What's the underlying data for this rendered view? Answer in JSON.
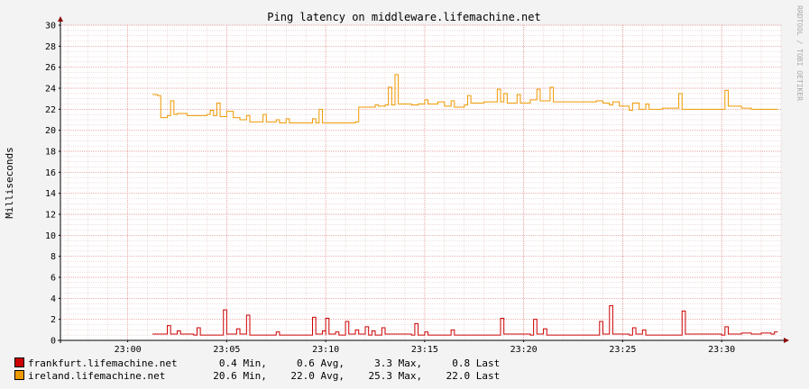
{
  "colors": {
    "background": "#f3f3f3",
    "canvas": "#ffffff",
    "grid_minor": "#e6c8c8",
    "grid_major": "#e08080",
    "frankfurt": "#cc0000",
    "ireland": "#ee9900"
  },
  "watermark": "RRDTOOL / TOBI OETIKER",
  "chart_data": {
    "type": "line",
    "title": "Ping latency on middleware.lifemachine.net",
    "xlabel": "",
    "ylabel": "Milliseconds",
    "ylim": [
      0,
      30
    ],
    "xlim": [
      "22:56:36",
      "23:33:00"
    ],
    "grid": true,
    "legend": "bottom-left",
    "y_ticks": [
      "0",
      "2",
      "4",
      "6",
      "8",
      "10",
      "12",
      "14",
      "16",
      "18",
      "20",
      "22",
      "24",
      "26",
      "28",
      "30"
    ],
    "x_ticks": [
      "23:00",
      "23:05",
      "23:10",
      "23:15",
      "23:20",
      "23:25",
      "23:30"
    ],
    "series": [
      {
        "name": "frankfurt.lifemachine.net",
        "color": "#cc0000",
        "stats": {
          "min": "0.4",
          "avg": "0.6",
          "max": "3.3",
          "last": "0.8"
        },
        "points": [
          [
            "23:01:15",
            0.6
          ],
          [
            "23:01:50",
            0.6
          ],
          [
            "23:02:00",
            1.4
          ],
          [
            "23:02:10",
            0.6
          ],
          [
            "23:02:30",
            0.9
          ],
          [
            "23:02:40",
            0.6
          ],
          [
            "23:03:20",
            0.5
          ],
          [
            "23:03:30",
            1.2
          ],
          [
            "23:03:40",
            0.5
          ],
          [
            "23:04:40",
            0.5
          ],
          [
            "23:04:50",
            2.9
          ],
          [
            "23:05:00",
            0.6
          ],
          [
            "23:05:30",
            1.1
          ],
          [
            "23:05:40",
            0.6
          ],
          [
            "23:06:00",
            2.4
          ],
          [
            "23:06:10",
            0.5
          ],
          [
            "23:07:20",
            0.5
          ],
          [
            "23:07:30",
            0.8
          ],
          [
            "23:07:40",
            0.5
          ],
          [
            "23:09:10",
            0.5
          ],
          [
            "23:09:20",
            2.2
          ],
          [
            "23:09:30",
            0.6
          ],
          [
            "23:09:50",
            0.9
          ],
          [
            "23:10:00",
            0.5
          ],
          [
            "23:10:00",
            2.1
          ],
          [
            "23:10:10",
            0.6
          ],
          [
            "23:10:30",
            0.8
          ],
          [
            "23:10:40",
            0.5
          ],
          [
            "23:11:00",
            1.8
          ],
          [
            "23:11:10",
            0.6
          ],
          [
            "23:11:30",
            1.0
          ],
          [
            "23:11:40",
            0.6
          ],
          [
            "23:12:00",
            1.3
          ],
          [
            "23:12:10",
            0.5
          ],
          [
            "23:12:20",
            0.9
          ],
          [
            "23:12:30",
            0.5
          ],
          [
            "23:12:50",
            1.2
          ],
          [
            "23:13:00",
            0.6
          ],
          [
            "23:14:20",
            0.5
          ],
          [
            "23:14:30",
            1.6
          ],
          [
            "23:14:40",
            0.5
          ],
          [
            "23:15:00",
            0.8
          ],
          [
            "23:15:10",
            0.5
          ],
          [
            "23:16:10",
            0.5
          ],
          [
            "23:16:20",
            1.0
          ],
          [
            "23:16:30",
            0.5
          ],
          [
            "23:18:40",
            0.5
          ],
          [
            "23:18:50",
            2.1
          ],
          [
            "23:19:00",
            0.6
          ],
          [
            "23:20:20",
            0.5
          ],
          [
            "23:20:30",
            2.0
          ],
          [
            "23:20:40",
            0.6
          ],
          [
            "23:21:00",
            1.1
          ],
          [
            "23:21:10",
            0.5
          ],
          [
            "23:23:40",
            0.5
          ],
          [
            "23:23:50",
            1.8
          ],
          [
            "23:24:00",
            0.6
          ],
          [
            "23:24:20",
            3.3
          ],
          [
            "23:24:30",
            0.6
          ],
          [
            "23:25:20",
            0.5
          ],
          [
            "23:25:30",
            1.2
          ],
          [
            "23:25:40",
            0.6
          ],
          [
            "23:26:00",
            1.0
          ],
          [
            "23:26:10",
            0.5
          ],
          [
            "23:27:50",
            0.5
          ],
          [
            "23:28:00",
            2.8
          ],
          [
            "23:28:10",
            0.6
          ],
          [
            "23:30:00",
            0.5
          ],
          [
            "23:30:10",
            1.3
          ],
          [
            "23:30:20",
            0.6
          ],
          [
            "23:31:00",
            0.7
          ],
          [
            "23:31:30",
            0.6
          ],
          [
            "23:32:00",
            0.7
          ],
          [
            "23:32:30",
            0.6
          ],
          [
            "23:32:40",
            0.8
          ],
          [
            "23:32:50",
            0.8
          ]
        ]
      },
      {
        "name": "ireland.lifemachine.net",
        "color": "#ee9900",
        "stats": {
          "min": "20.6",
          "avg": "22.0",
          "max": "25.3",
          "last": "22.0"
        },
        "points": [
          [
            "23:01:15",
            23.4
          ],
          [
            "23:01:30",
            23.3
          ],
          [
            "23:01:40",
            21.2
          ],
          [
            "23:02:00",
            21.4
          ],
          [
            "23:02:10",
            22.8
          ],
          [
            "23:02:20",
            21.5
          ],
          [
            "23:02:30",
            21.6
          ],
          [
            "23:03:00",
            21.4
          ],
          [
            "23:04:00",
            21.5
          ],
          [
            "23:04:10",
            21.9
          ],
          [
            "23:04:20",
            21.4
          ],
          [
            "23:04:30",
            22.6
          ],
          [
            "23:04:40",
            21.3
          ],
          [
            "23:05:00",
            21.8
          ],
          [
            "23:05:20",
            21.2
          ],
          [
            "23:05:40",
            21.0
          ],
          [
            "23:06:00",
            21.4
          ],
          [
            "23:06:10",
            20.8
          ],
          [
            "23:06:50",
            21.5
          ],
          [
            "23:07:00",
            20.8
          ],
          [
            "23:07:30",
            21.0
          ],
          [
            "23:07:40",
            20.7
          ],
          [
            "23:08:00",
            21.1
          ],
          [
            "23:08:10",
            20.7
          ],
          [
            "23:09:20",
            21.1
          ],
          [
            "23:09:30",
            20.7
          ],
          [
            "23:09:40",
            22.0
          ],
          [
            "23:09:50",
            20.7
          ],
          [
            "23:11:30",
            20.8
          ],
          [
            "23:11:40",
            22.2
          ],
          [
            "23:12:30",
            22.4
          ],
          [
            "23:12:40",
            22.3
          ],
          [
            "23:13:00",
            22.4
          ],
          [
            "23:13:10",
            24.1
          ],
          [
            "23:13:20",
            22.4
          ],
          [
            "23:13:30",
            25.3
          ],
          [
            "23:13:40",
            22.5
          ],
          [
            "23:14:20",
            22.4
          ],
          [
            "23:14:40",
            22.5
          ],
          [
            "23:15:00",
            22.9
          ],
          [
            "23:15:10",
            22.5
          ],
          [
            "23:15:40",
            22.7
          ],
          [
            "23:16:00",
            22.3
          ],
          [
            "23:16:20",
            22.8
          ],
          [
            "23:16:30",
            22.2
          ],
          [
            "23:17:00",
            22.4
          ],
          [
            "23:17:10",
            23.3
          ],
          [
            "23:17:20",
            22.6
          ],
          [
            "23:18:00",
            22.7
          ],
          [
            "23:18:20",
            22.7
          ],
          [
            "23:18:40",
            23.9
          ],
          [
            "23:18:50",
            22.7
          ],
          [
            "23:19:00",
            23.5
          ],
          [
            "23:19:10",
            22.6
          ],
          [
            "23:19:40",
            23.4
          ],
          [
            "23:19:50",
            22.6
          ],
          [
            "23:20:20",
            22.9
          ],
          [
            "23:20:40",
            23.9
          ],
          [
            "23:20:50",
            22.8
          ],
          [
            "23:21:20",
            24.1
          ],
          [
            "23:21:30",
            22.7
          ],
          [
            "23:23:30",
            22.7
          ],
          [
            "23:23:40",
            22.8
          ],
          [
            "23:24:00",
            22.6
          ],
          [
            "23:24:20",
            22.4
          ],
          [
            "23:24:30",
            22.7
          ],
          [
            "23:24:50",
            22.3
          ],
          [
            "23:25:20",
            21.9
          ],
          [
            "23:25:30",
            22.6
          ],
          [
            "23:25:50",
            22.0
          ],
          [
            "23:26:10",
            22.5
          ],
          [
            "23:26:20",
            22.0
          ],
          [
            "23:27:00",
            22.1
          ],
          [
            "23:27:50",
            23.5
          ],
          [
            "23:28:00",
            22.0
          ],
          [
            "23:29:00",
            22.0
          ],
          [
            "23:29:30",
            22.0
          ],
          [
            "23:30:10",
            23.8
          ],
          [
            "23:30:20",
            22.3
          ],
          [
            "23:31:00",
            22.1
          ],
          [
            "23:31:30",
            22.0
          ],
          [
            "23:32:50",
            22.0
          ]
        ]
      }
    ]
  },
  "legend": [
    {
      "name": "frankfurt.lifemachine.net",
      "min": "0.4",
      "avg": "0.6",
      "max": "3.3",
      "last": "0.8",
      "color": "#cc0000"
    },
    {
      "name": "ireland.lifemachine.net",
      "min": "20.6",
      "avg": "22.0",
      "max": "25.3",
      "last": "22.0",
      "color": "#ee9900"
    }
  ],
  "labels": {
    "min": "Min,",
    "avg": "Avg,",
    "max": "Max,",
    "last": "Last"
  }
}
